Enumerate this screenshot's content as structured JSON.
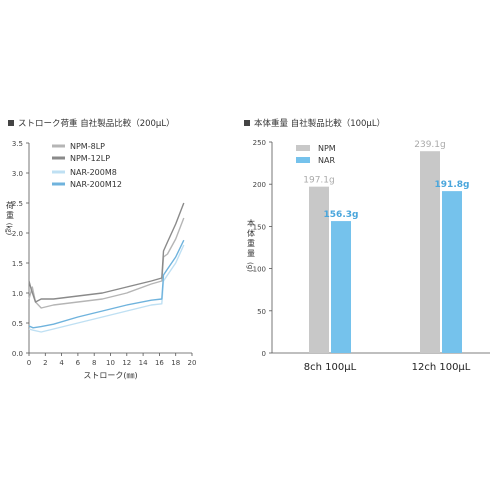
{
  "chart_data": [
    {
      "type": "line",
      "title": "ストローク荷重 自社製品比較（200μL）",
      "xlabel": "ストローク(㎜)",
      "ylabel": "荷重",
      "ylabel_unit": "(㎏)",
      "xlim": [
        0,
        20
      ],
      "ylim": [
        0,
        3.5
      ],
      "x_ticks": [
        "0",
        "2",
        "4",
        "6",
        "8",
        "10",
        "12",
        "14",
        "16",
        "18",
        "20"
      ],
      "y_ticks": [
        "0.0",
        "0.5",
        "1.0",
        "1.5",
        "2.0",
        "2.5",
        "3.0",
        "3.5"
      ],
      "grid": false,
      "legend_position": "top-left",
      "series": [
        {
          "name": "NPM-8LP",
          "color": "#b5b5b5",
          "points": [
            [
              0,
              0.9
            ],
            [
              0.4,
              1.1
            ],
            [
              0.8,
              0.85
            ],
            [
              1.5,
              0.75
            ],
            [
              3,
              0.8
            ],
            [
              6,
              0.85
            ],
            [
              9,
              0.9
            ],
            [
              12,
              1.0
            ],
            [
              15,
              1.15
            ],
            [
              16.3,
              1.2
            ],
            [
              16.5,
              1.6
            ],
            [
              17,
              1.65
            ],
            [
              18,
              1.9
            ],
            [
              19,
              2.25
            ]
          ]
        },
        {
          "name": "NPM-12LP",
          "color": "#8a8a8a",
          "points": [
            [
              0,
              1.2
            ],
            [
              0.3,
              1.05
            ],
            [
              0.8,
              0.85
            ],
            [
              1.5,
              0.9
            ],
            [
              3,
              0.9
            ],
            [
              6,
              0.95
            ],
            [
              9,
              1.0
            ],
            [
              12,
              1.1
            ],
            [
              15,
              1.2
            ],
            [
              16.3,
              1.25
            ],
            [
              16.5,
              1.7
            ],
            [
              17,
              1.85
            ],
            [
              18,
              2.15
            ],
            [
              19,
              2.5
            ]
          ]
        },
        {
          "name": "NAR-200M8",
          "color": "#bfe0f3",
          "points": [
            [
              0,
              0.4
            ],
            [
              0.5,
              0.38
            ],
            [
              1.5,
              0.35
            ],
            [
              3,
              0.4
            ],
            [
              6,
              0.5
            ],
            [
              9,
              0.6
            ],
            [
              12,
              0.7
            ],
            [
              15,
              0.8
            ],
            [
              16.3,
              0.82
            ],
            [
              16.5,
              1.2
            ],
            [
              17,
              1.3
            ],
            [
              18,
              1.5
            ],
            [
              19,
              1.8
            ]
          ]
        },
        {
          "name": "NAR-200M12",
          "color": "#6fb3dd",
          "points": [
            [
              0,
              0.45
            ],
            [
              0.5,
              0.42
            ],
            [
              1.5,
              0.44
            ],
            [
              3,
              0.48
            ],
            [
              6,
              0.6
            ],
            [
              9,
              0.7
            ],
            [
              12,
              0.8
            ],
            [
              15,
              0.88
            ],
            [
              16.3,
              0.9
            ],
            [
              16.5,
              1.3
            ],
            [
              17,
              1.4
            ],
            [
              18,
              1.6
            ],
            [
              19,
              1.88
            ]
          ]
        }
      ]
    },
    {
      "type": "bar",
      "title": "本体重量 自社製品比較（100μL）",
      "ylabel": "本体重量",
      "ylabel_unit": "(g)",
      "categories": [
        "8ch 100μL",
        "12ch 100μL"
      ],
      "ylim": [
        0,
        250
      ],
      "y_ticks": [
        "0",
        "50",
        "100",
        "150",
        "200",
        "250"
      ],
      "legend_position": "top-left",
      "series": [
        {
          "name": "NPM",
          "color": "#c8c8c8",
          "values": [
            197.1,
            239.1
          ],
          "labels": [
            "197.1g",
            "239.1g"
          ]
        },
        {
          "name": "NAR",
          "color": "#75c2ec",
          "values": [
            156.3,
            191.8
          ],
          "labels": [
            "156.3g",
            "191.8g"
          ]
        }
      ]
    }
  ]
}
